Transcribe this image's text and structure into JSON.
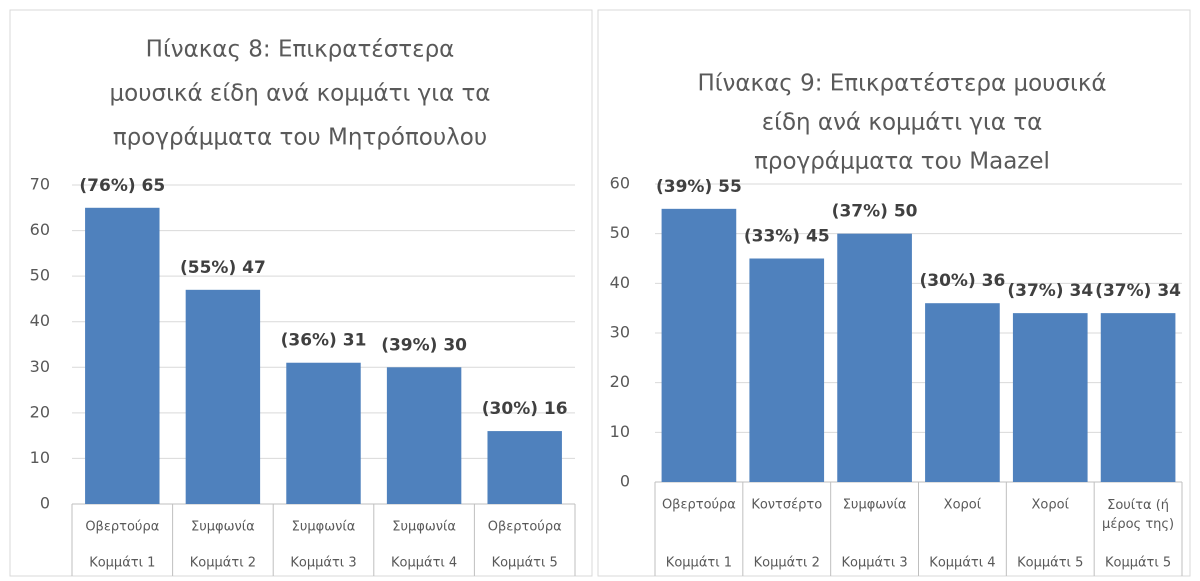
{
  "chart_data": [
    {
      "type": "bar",
      "title": [
        "Πίνακας 8: Επικρατέστερα",
        "μουσικά είδη ανά κομμάτι για τα",
        "προγράμματα του Μητρόπουλου"
      ],
      "categories": [
        "Οβερτούρα",
        "Συμφωνία",
        "Συμφωνία",
        "Συμφωνία",
        "Οβερτούρα"
      ],
      "category_groups": [
        "Κομμάτι 1",
        "Κομμάτι 2",
        "Κομμάτι 3",
        "Κομμάτι 4",
        "Κομμάτι 5"
      ],
      "values": [
        65,
        47,
        31,
        30,
        16
      ],
      "value_labels": [
        "(76%) 65",
        "(55%) 47",
        "(36%) 31",
        "(39%) 30",
        "(30%) 16"
      ],
      "color": "#4f81bd",
      "ylim": [
        0,
        70
      ],
      "yticks": [
        0,
        10,
        20,
        30,
        40,
        50,
        60,
        70
      ],
      "grid": true
    },
    {
      "type": "bar",
      "title": [
        "Πίνακας 9: Επικρατέστερα μουσικά",
        "είδη ανά κομμάτι για τα",
        "προγράμματα του Maazel"
      ],
      "categories": [
        "Οβερτούρα",
        "Κοντσέρτο",
        "Συμφωνία",
        "Χοροί",
        "Χοροί",
        "Σουίτα (ή μέρος της)"
      ],
      "category_groups": [
        "Κομμάτι 1",
        "Κομμάτι 2",
        "Κομμάτι 3",
        "Κομμάτι 4",
        "Κομμάτι 5",
        "Κομμάτι 5"
      ],
      "values": [
        55,
        45,
        50,
        36,
        34,
        34
      ],
      "value_labels": [
        "(39%) 55",
        "(33%) 45",
        "(37%) 50",
        "(30%) 36",
        "(37%) 34",
        "(37%) 34"
      ],
      "color": "#4f81bd",
      "ylim": [
        0,
        60
      ],
      "yticks": [
        0,
        10,
        20,
        30,
        40,
        50,
        60
      ],
      "grid": true
    }
  ]
}
